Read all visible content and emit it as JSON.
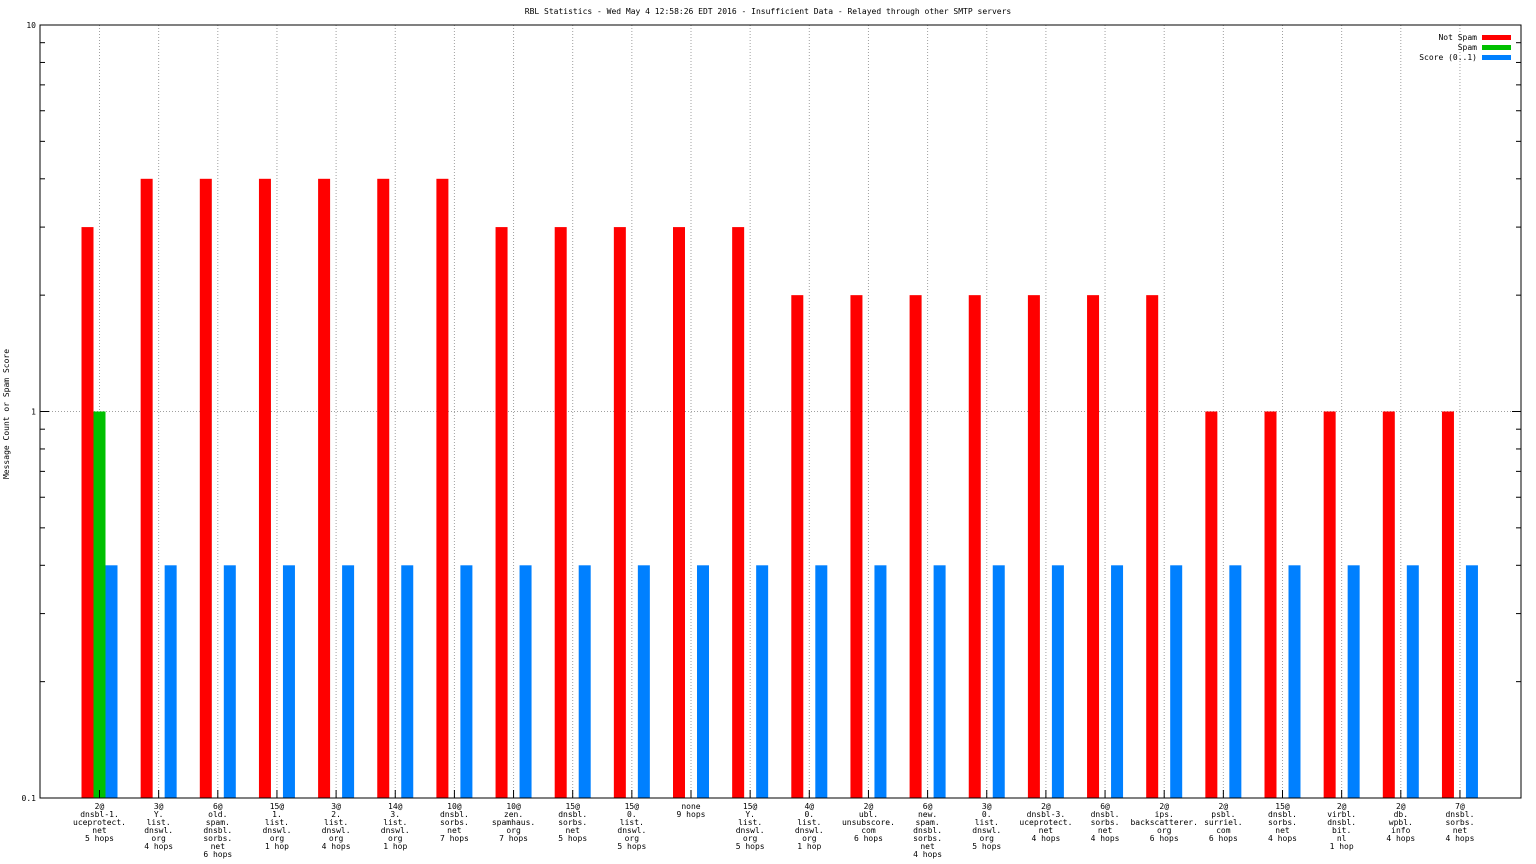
{
  "chart_data": {
    "type": "bar",
    "title": "RBL Statistics - Wed May  4 12:58:26 EDT 2016 - Insufficient Data - Relayed through other SMTP servers",
    "xlabel": "",
    "ylabel": "Message Count or Spam Score",
    "yscale": "log",
    "ylim": [
      0.1,
      10
    ],
    "yticks": [
      {
        "value": 0.1,
        "label": "0.1"
      },
      {
        "value": 1,
        "label": "1"
      },
      {
        "value": 10,
        "label": "10"
      }
    ],
    "grid": "dotted",
    "legend_position": "top-right",
    "categories": [
      [
        "2@",
        "dnsbl-1.",
        "uceprotect.",
        "net",
        "5 hops"
      ],
      [
        "3@",
        "Y.",
        "list.",
        "dnswl.",
        "org",
        "4 hops"
      ],
      [
        "6@",
        "old.",
        "spam.",
        "dnsbl.",
        "sorbs.",
        "net",
        "6 hops"
      ],
      [
        "15@",
        "1.",
        "list.",
        "dnswl.",
        "org",
        "1 hop"
      ],
      [
        "3@",
        "2.",
        "list.",
        "dnswl.",
        "org",
        "4 hops"
      ],
      [
        "14@",
        "3.",
        "list.",
        "dnswl.",
        "org",
        "1 hop"
      ],
      [
        "10@",
        "dnsbl.",
        "sorbs.",
        "net",
        "7 hops"
      ],
      [
        "10@",
        "zen.",
        "spamhaus.",
        "org",
        "7 hops"
      ],
      [
        "15@",
        "dnsbl.",
        "sorbs.",
        "net",
        "5 hops"
      ],
      [
        "15@",
        "0.",
        "list.",
        "dnswl.",
        "org",
        "5 hops"
      ],
      [
        "none",
        "9 hops"
      ],
      [
        "15@",
        "Y.",
        "list.",
        "dnswl.",
        "org",
        "5 hops"
      ],
      [
        "4@",
        "0.",
        "list.",
        "dnswl.",
        "org",
        "1 hop"
      ],
      [
        "2@",
        "ubl.",
        "unsubscore.",
        "com",
        "6 hops"
      ],
      [
        "6@",
        "new.",
        "spam.",
        "dnsbl.",
        "sorbs.",
        "net",
        "4 hops"
      ],
      [
        "3@",
        "0.",
        "list.",
        "dnswl.",
        "org",
        "5 hops"
      ],
      [
        "2@",
        "dnsbl-3.",
        "uceprotect.",
        "net",
        "4 hops"
      ],
      [
        "6@",
        "dnsbl.",
        "sorbs.",
        "net",
        "4 hops"
      ],
      [
        "2@",
        "ips.",
        "backscatterer.",
        "org",
        "6 hops"
      ],
      [
        "2@",
        "psbl.",
        "surriel.",
        "com",
        "6 hops"
      ],
      [
        "15@",
        "dnsbl.",
        "sorbs.",
        "net",
        "4 hops"
      ],
      [
        "2@",
        "virbl.",
        "dnsbl.",
        "bit.",
        "nl",
        "1 hop"
      ],
      [
        "2@",
        "db.",
        "wpbl.",
        "info",
        "4 hops"
      ],
      [
        "7@",
        "dnsbl.",
        "sorbs.",
        "net",
        "4 hops"
      ]
    ],
    "series": [
      {
        "name": "Not Spam",
        "color": "#ff0000",
        "values": [
          3,
          4,
          4,
          4,
          4,
          4,
          4,
          3,
          3,
          3,
          3,
          3,
          2,
          2,
          2,
          2,
          2,
          2,
          2,
          1,
          1,
          1,
          1,
          1
        ]
      },
      {
        "name": "Spam",
        "color": "#00c000",
        "values": [
          1,
          0,
          0,
          0,
          0,
          0,
          0,
          0,
          0,
          0,
          0,
          0,
          0,
          0,
          0,
          0,
          0,
          0,
          0,
          0,
          0,
          0,
          0,
          0
        ]
      },
      {
        "name": "Score (0..1)",
        "color": "#0080ff",
        "values": [
          0.4,
          0.4,
          0.4,
          0.4,
          0.4,
          0.4,
          0.4,
          0.4,
          0.4,
          0.4,
          0.4,
          0.4,
          0.4,
          0.4,
          0.4,
          0.4,
          0.4,
          0.4,
          0.4,
          0.4,
          0.4,
          0.4,
          0.4,
          0.4
        ]
      }
    ]
  }
}
